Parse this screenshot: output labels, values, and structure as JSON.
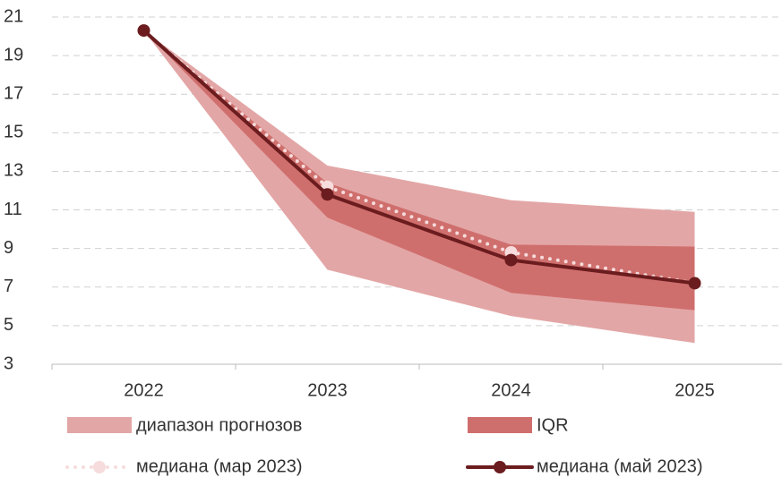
{
  "chart_data": {
    "type": "fan",
    "categories": [
      "2022",
      "2023",
      "2024",
      "2025"
    ],
    "ylim": [
      3,
      21
    ],
    "yticks": [
      3,
      5,
      7,
      9,
      11,
      13,
      15,
      17,
      19,
      21
    ],
    "grid": true,
    "bands": [
      {
        "name": "диапазон прогнозов",
        "color": "#e3a6a6",
        "low": [
          20.3,
          7.9,
          5.5,
          4.1
        ],
        "high": [
          20.3,
          13.3,
          11.5,
          10.9
        ]
      },
      {
        "name": "IQR",
        "color": "#cf6f6d",
        "low": [
          20.3,
          10.6,
          6.7,
          5.8
        ],
        "high": [
          20.3,
          12.4,
          9.2,
          9.1
        ]
      }
    ],
    "series": [
      {
        "name": "медиана (мар 2023)",
        "color": "#f6dcdc",
        "style": "dotted",
        "values": [
          20.3,
          12.2,
          8.8,
          7.2
        ]
      },
      {
        "name": "медиана (май 2023)",
        "color": "#6b1c1e",
        "style": "solid",
        "values": [
          20.3,
          11.8,
          8.4,
          7.2
        ]
      }
    ]
  }
}
